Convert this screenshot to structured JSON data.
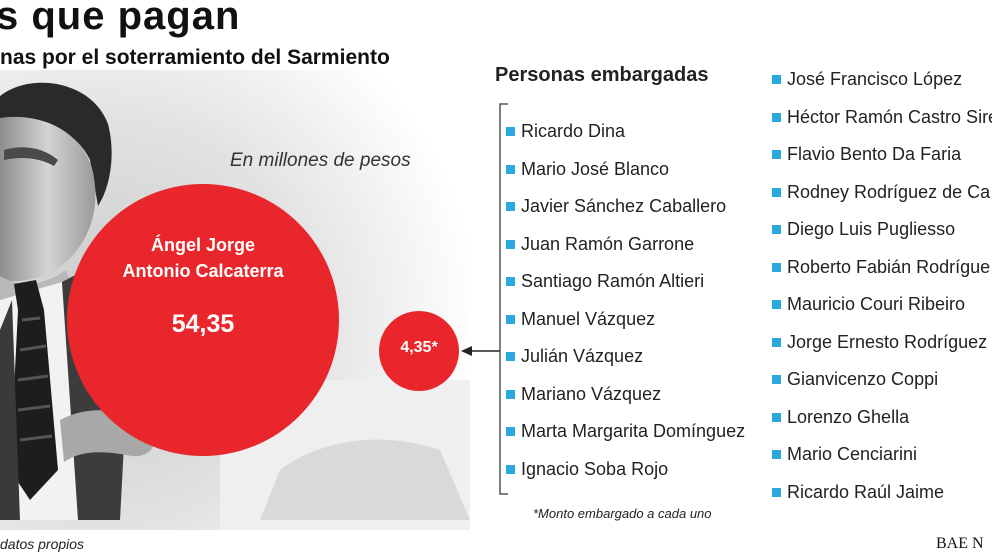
{
  "header": {
    "title": "s que pagan",
    "subtitle": "nas por el soterramiento del Sarmiento",
    "unit_note": "En millones de pesos"
  },
  "chart_data": {
    "type": "bubble",
    "title": "s que pagan",
    "subtitle": "nas por el soterramiento del Sarmiento",
    "unit": "En millones de pesos",
    "bubbles": [
      {
        "label": "Ángel Jorge Antonio Calcaterra",
        "label_lines": [
          "Ángel Jorge",
          "Antonio Calcaterra"
        ],
        "value": 54.35,
        "display": "54,35"
      },
      {
        "label": "",
        "value": 4.35,
        "display": "4,35*"
      }
    ],
    "colors": {
      "bubble": "#e8262b",
      "bullet": "#2aa9de",
      "bracket": "#555555"
    }
  },
  "list": {
    "heading": "Personas embargadas",
    "column1": [
      "Ricardo Dina",
      "Mario José Blanco",
      "Javier Sánchez Caballero",
      "Juan Ramón Garrone",
      "Santiago Ramón Altieri",
      "Manuel Vázquez",
      "Julián Vázquez",
      "Mariano Vázquez",
      "Marta Margarita Domínguez",
      "Ignacio Soba Rojo"
    ],
    "column2": [
      "José Francisco López",
      "Héctor Ramón Castro Sire",
      "Flavio Bento Da Faria",
      "Rodney Rodríguez de Ca",
      "Diego Luis Pugliesso",
      "Roberto Fabián Rodrígue",
      "Mauricio Couri Ribeiro",
      "Jorge Ernesto Rodríguez",
      "Gianvicenzo Coppi",
      "Lorenzo Ghella",
      "Mario Cenciarini",
      "Ricardo Raúl Jaime"
    ],
    "footnote": "*Monto embargado a cada uno"
  },
  "footer": {
    "source": "datos propios",
    "brand": "BAE N"
  },
  "icons": {
    "photo": "man-in-suit-photo"
  }
}
